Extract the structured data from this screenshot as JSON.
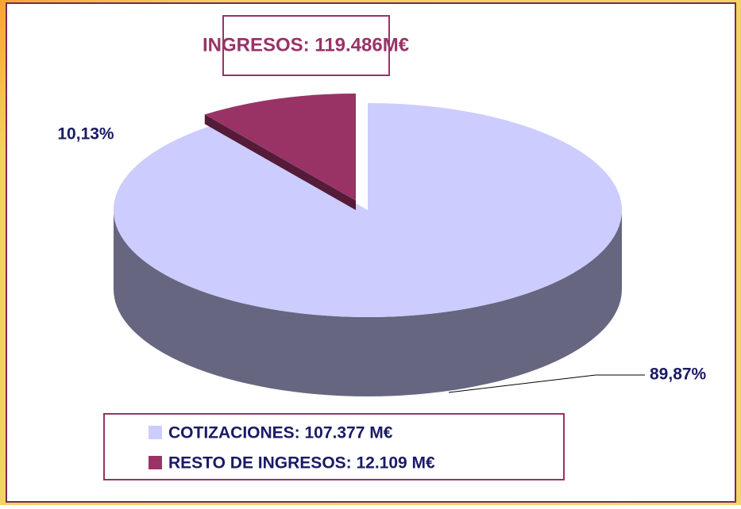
{
  "chart_data": {
    "type": "pie",
    "title": "INGRESOS: 119.486M€",
    "categories": [
      "COTIZACIONES: 107.377 M€",
      "RESTO DE INGRESOS: 12.109 M€"
    ],
    "values": [
      89.87,
      10.13
    ],
    "value_labels": [
      "89,87%",
      "10,13%"
    ],
    "colors": [
      "#ccccff",
      "#993366"
    ]
  }
}
